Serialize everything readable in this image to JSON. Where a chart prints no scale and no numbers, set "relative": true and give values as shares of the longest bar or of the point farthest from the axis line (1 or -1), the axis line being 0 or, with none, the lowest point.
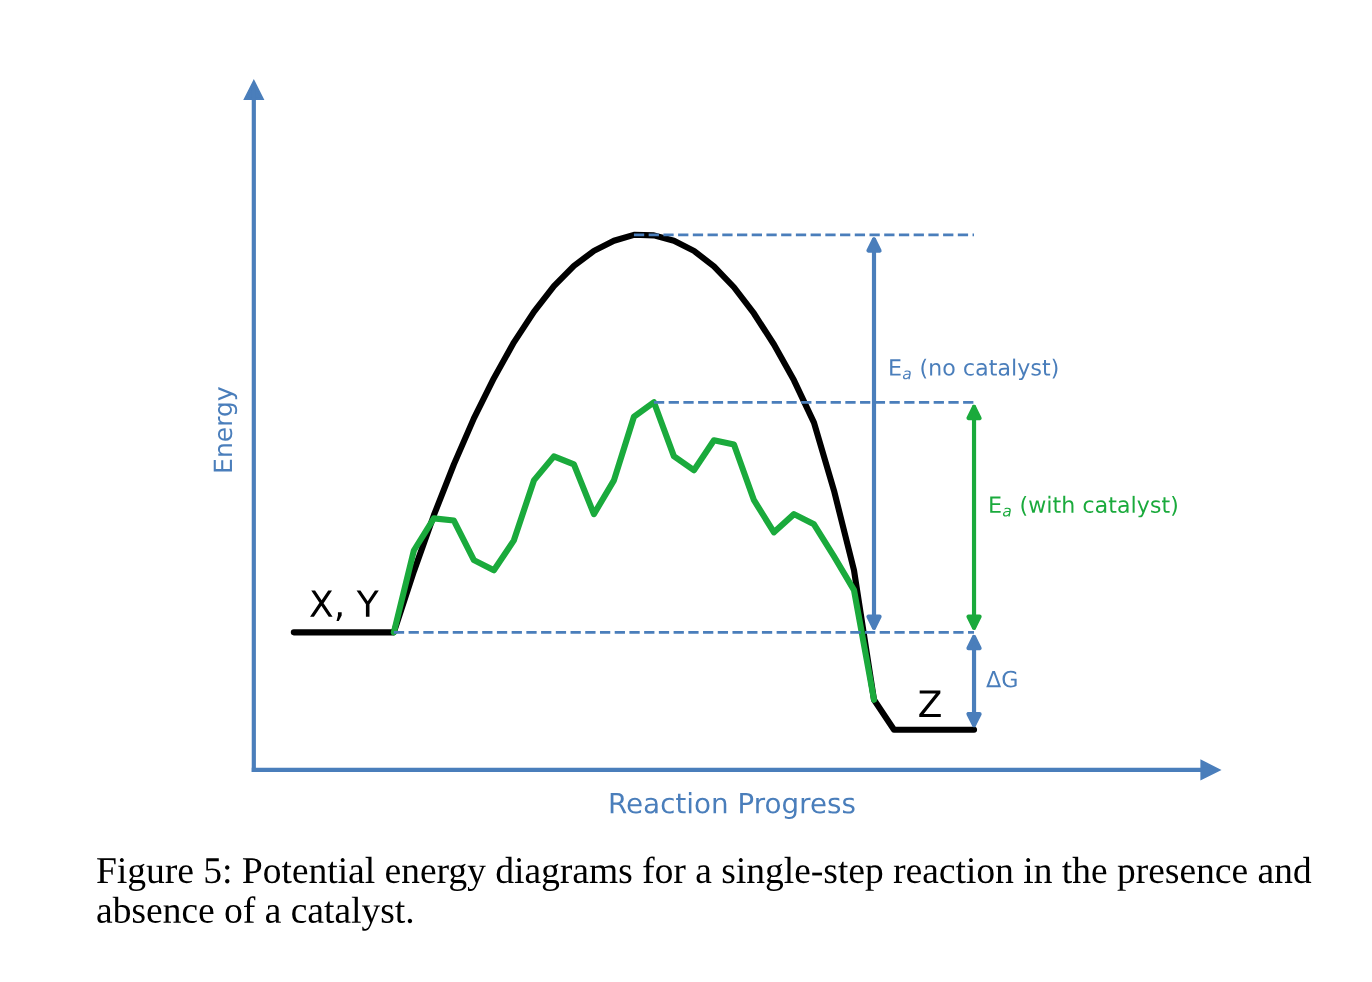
{
  "chart_data": {
    "type": "line",
    "relative": true,
    "xlabel": "Reaction Progress",
    "ylabel": "Energy",
    "categories": [
      null,
      null,
      null,
      null,
      null,
      null,
      null,
      null,
      null,
      null,
      null,
      null,
      null,
      null,
      null,
      null,
      null,
      null,
      null,
      null,
      null,
      null,
      null,
      null,
      null,
      null,
      null,
      null,
      null,
      null,
      null,
      null,
      null,
      null,
      null
    ],
    "series": [
      {
        "color": "#000000",
        "values": [
          0.257,
          0.257,
          0.257,
          0.257,
          0.257,
          0.257,
          0.371,
          0.476,
          0.571,
          0.657,
          0.732,
          0.799,
          0.856,
          0.904,
          0.942,
          0.97,
          0.989,
          1.0,
          0.999,
          0.989,
          0.97,
          0.941,
          0.902,
          0.853,
          0.795,
          0.728,
          0.649,
          0.522,
          0.373,
          0.131,
          0.075,
          0.075,
          0.075,
          0.075,
          0.075
        ]
      },
      {
        "color": "#1aaa3c",
        "values": [
          null,
          null,
          null,
          null,
          null,
          0.257,
          0.41,
          0.47,
          0.466,
          0.392,
          0.373,
          0.429,
          0.541,
          0.586,
          0.571,
          0.478,
          0.541,
          0.66,
          0.687,
          0.586,
          0.56,
          0.616,
          0.608,
          0.504,
          0.444,
          0.478,
          0.459,
          0.399,
          0.336,
          0.131,
          null,
          null,
          null,
          null,
          null
        ]
      }
    ],
    "ref_lines": [
      {
        "axis": "y",
        "value": 1.0,
        "color": "#4a7ebb",
        "line_style": "dashed"
      },
      {
        "axis": "y",
        "value": 0.687,
        "color": "#4a7ebb",
        "line_style": "dashed"
      },
      {
        "axis": "y",
        "value": 0.257,
        "color": "#4a7ebb",
        "line_style": "dashed"
      }
    ],
    "annotations": [
      "X, Y",
      "Z",
      "E$_{a}$ (no catalyst)",
      "E$_{a}$ (with catalyst)",
      "ΔG",
      "Figure 5: Potential energy diagrams for a single-step reaction in the presence and absence of a catalyst."
    ],
    "marker": "none",
    "line_style": "solid"
  }
}
